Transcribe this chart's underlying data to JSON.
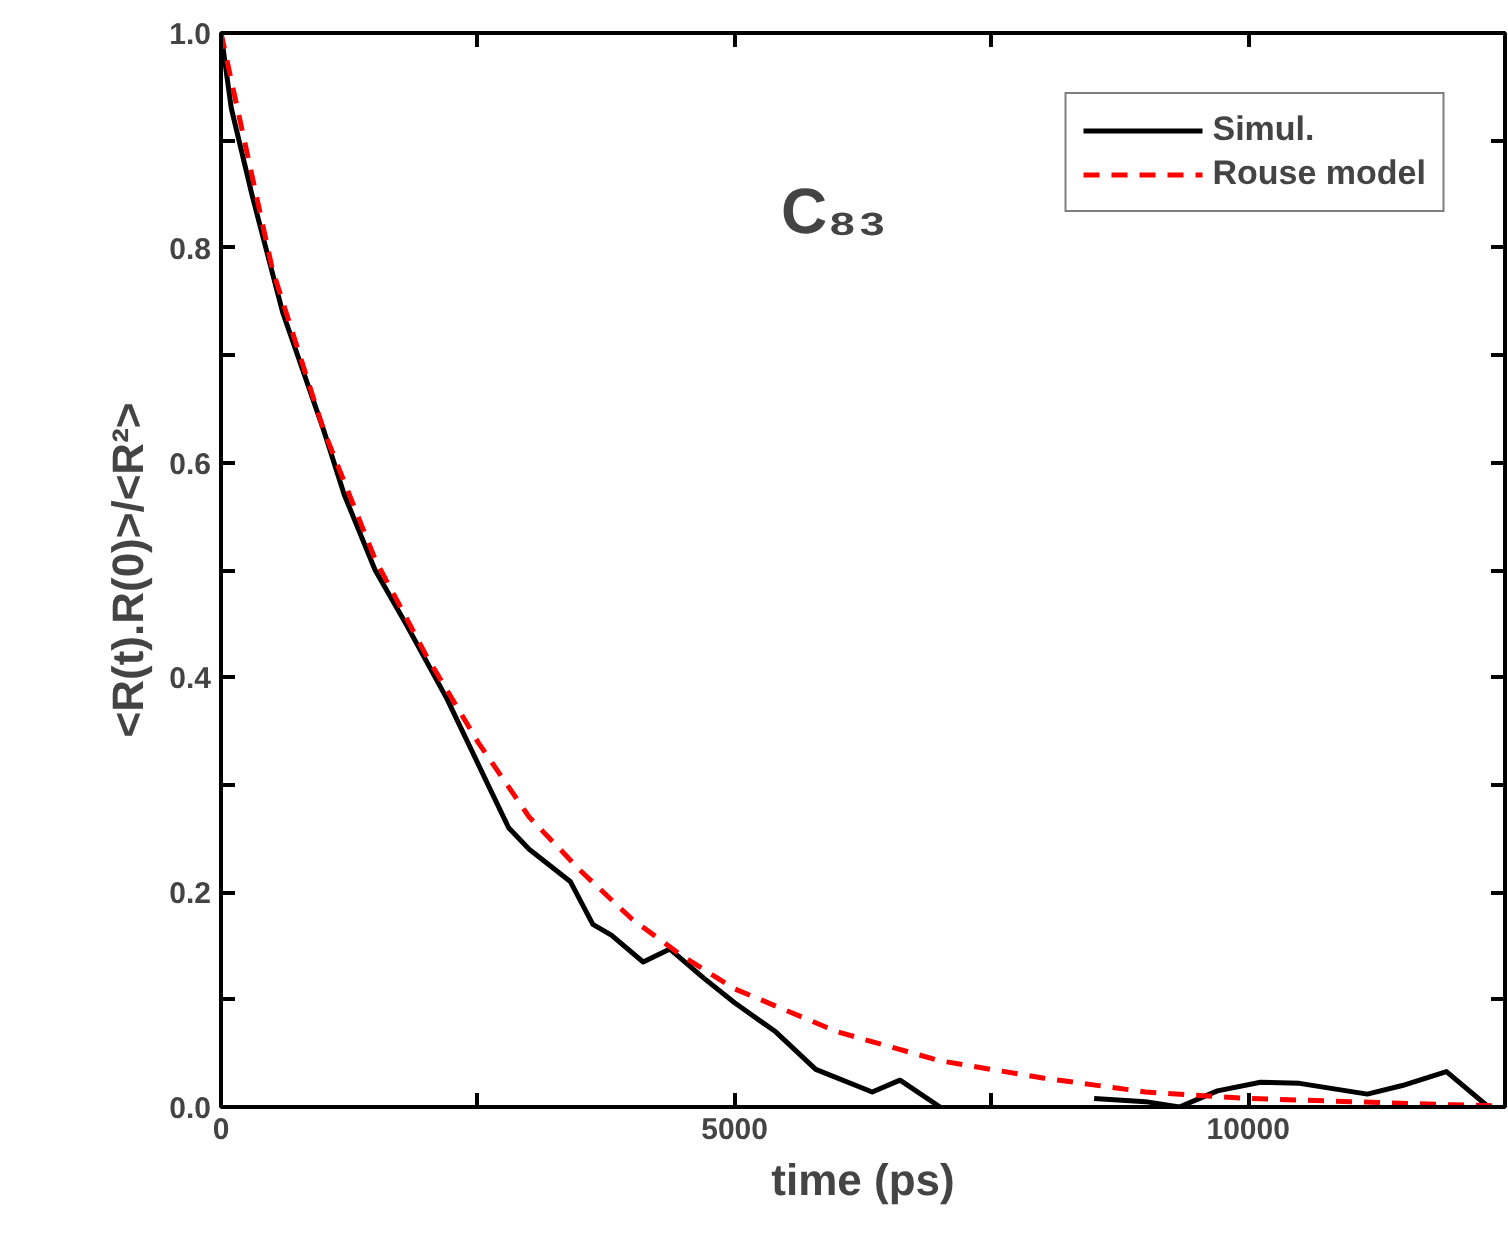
{
  "chart_data": {
    "type": "line",
    "xlabel": "time (ps)",
    "ylabel": "<R(t).R(0)>/<R²>",
    "annotations": [
      "C₈₃"
    ],
    "xlim": [
      0,
      12500
    ],
    "ylim": [
      0,
      1.0
    ],
    "xticks": [
      0,
      {
        "value": 2500,
        "label": null
      },
      5000,
      {
        "value": 7500,
        "label": null
      },
      10000,
      {
        "value": 12500,
        "label": null
      }
    ],
    "yticks": [
      "0.0",
      {
        "value": 0.1,
        "label": null
      },
      {
        "value": 0.2,
        "label": "0.2"
      },
      {
        "value": 0.3,
        "label": null
      },
      {
        "value": 0.4,
        "label": "0.4"
      },
      {
        "value": 0.5,
        "label": null
      },
      {
        "value": 0.6,
        "label": "0.6"
      },
      {
        "value": 0.7,
        "label": null
      },
      {
        "value": 0.8,
        "label": "0.8"
      },
      {
        "value": 0.9,
        "label": null
      },
      {
        "value": 1.0,
        "label": "1.0"
      }
    ],
    "grid": false,
    "legend": "top right",
    "marker": "none",
    "series": [
      {
        "name": "Simul.",
        "color": "#000000",
        "line_style": "solid",
        "x": [
          0,
          100,
          300,
          600,
          1000,
          1200,
          1500,
          1800,
          2200,
          2600,
          2800,
          3000,
          3400,
          3620,
          3800,
          4110,
          4370,
          4700,
          5000,
          5400,
          5790,
          6340,
          6610,
          7000,
          8350,
          8500,
          9000,
          9330,
          9700,
          10120,
          10500,
          11160,
          11500,
          11930,
          12340
        ],
        "values": [
          1.0,
          0.93,
          0.85,
          0.74,
          0.63,
          0.57,
          0.5,
          0.45,
          0.38,
          0.3,
          0.26,
          0.24,
          0.21,
          0.17,
          0.16,
          0.135,
          0.147,
          0.12,
          0.097,
          0.07,
          0.035,
          0.014,
          0.025,
          0.0,
          null,
          0.008,
          0.005,
          0.0,
          0.015,
          0.023,
          0.022,
          0.012,
          0.02,
          0.033,
          0.0
        ]
      },
      {
        "name": "Rouse model",
        "color": "#ff0000",
        "line_style": "dashed",
        "x": [
          0,
          500,
          1000,
          1500,
          2000,
          2500,
          3000,
          3500,
          4000,
          4500,
          5000,
          5500,
          6000,
          7000,
          8000,
          9000,
          10000,
          11000,
          12000,
          12500
        ],
        "values": [
          1.0,
          0.78,
          0.63,
          0.51,
          0.42,
          0.34,
          0.27,
          0.22,
          0.175,
          0.14,
          0.11,
          0.09,
          0.07,
          0.043,
          0.027,
          0.014,
          0.008,
          0.005,
          0.002,
          0.001
        ]
      }
    ]
  }
}
